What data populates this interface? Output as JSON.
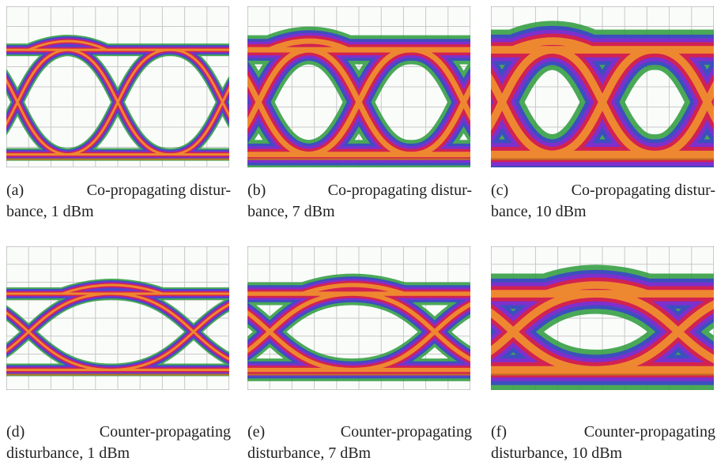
{
  "panels": [
    {
      "label": "(a)",
      "line1": "Co-propagating distur-",
      "line2": "bance, 1 dBm"
    },
    {
      "label": "(b)",
      "line1": "Co-propagating distur-",
      "line2": "bance, 7 dBm"
    },
    {
      "label": "(c)",
      "line1": "Co-propagating distur-",
      "line2": "bance, 10 dBm"
    },
    {
      "label": "(d)",
      "line1": "Counter-propagating",
      "line2": "disturbance, 1 dBm"
    },
    {
      "label": "(e)",
      "line1": "Counter-propagating",
      "line2": "disturbance, 7 dBm"
    },
    {
      "label": "(f)",
      "line1": "Counter-propagating",
      "line2": "disturbance, 10 dBm"
    }
  ]
}
